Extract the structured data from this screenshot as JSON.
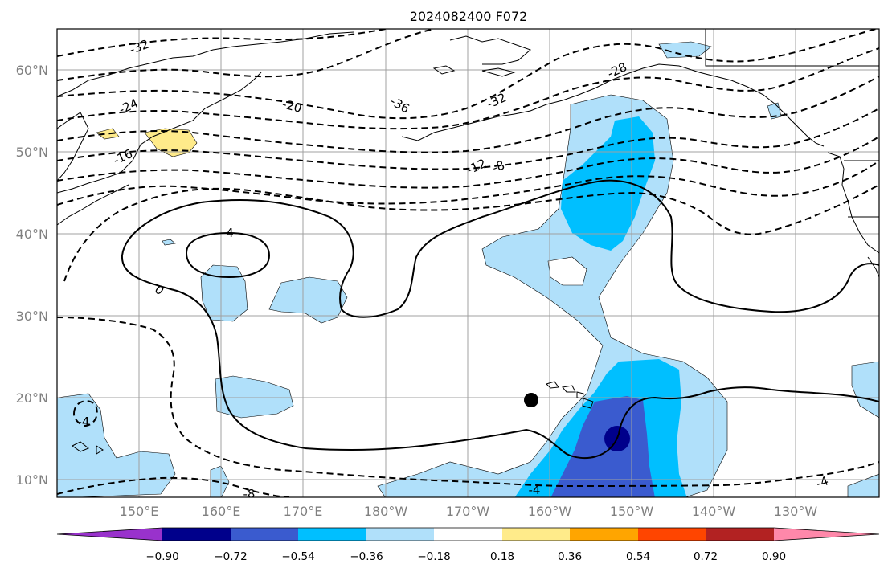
{
  "title": "2024082400 F072",
  "axes": {
    "lat_labels": [
      "60°N",
      "50°N",
      "40°N",
      "30°N",
      "20°N",
      "10°N"
    ],
    "lon_labels": [
      "150°E",
      "160°E",
      "170°E",
      "180°W",
      "170°W",
      "160°W",
      "150°W",
      "140°W",
      "130°W"
    ]
  },
  "colorbar": {
    "ticks": [
      "−0.90",
      "−0.72",
      "−0.54",
      "−0.36",
      "−0.18",
      "0.18",
      "0.36",
      "0.54",
      "0.72",
      "0.90"
    ],
    "colors": [
      "#9932cc",
      "#00008b",
      "#3a5bcf",
      "#00bfff",
      "#b0e0fa",
      "#ffffff",
      "#ffeb8a",
      "#ffa500",
      "#ff4500",
      "#b22222",
      "#ff88aa"
    ]
  },
  "contour_labels": [
    "-32",
    "-24",
    "-20",
    "-36",
    "-32",
    "-28",
    "-16",
    "-12",
    "-8",
    "4",
    "0",
    "-4",
    "-4",
    "-8",
    "-4"
  ],
  "marker": "black-dot"
}
